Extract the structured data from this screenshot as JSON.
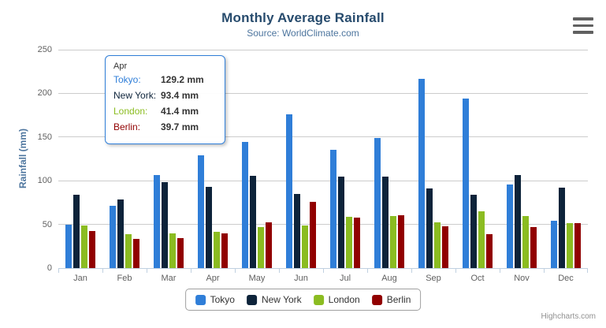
{
  "header": {
    "title": "Monthly Average Rainfall",
    "subtitle": "Source: WorldClimate.com"
  },
  "chart_data": {
    "type": "bar",
    "title": "Monthly Average Rainfall",
    "subtitle": "Source: WorldClimate.com",
    "categories": [
      "Jan",
      "Feb",
      "Mar",
      "Apr",
      "May",
      "Jun",
      "Jul",
      "Aug",
      "Sep",
      "Oct",
      "Nov",
      "Dec"
    ],
    "series": [
      {
        "name": "Tokyo",
        "color": "#2f7ed8",
        "values": [
          49.9,
          71.5,
          106.4,
          129.2,
          144.0,
          176.0,
          135.6,
          148.5,
          216.4,
          194.1,
          95.6,
          54.4
        ]
      },
      {
        "name": "New York",
        "color": "#0d233a",
        "values": [
          83.6,
          78.8,
          98.5,
          93.4,
          106.0,
          84.5,
          105.0,
          104.3,
          91.2,
          83.5,
          106.6,
          92.3
        ]
      },
      {
        "name": "London",
        "color": "#8bbc21",
        "values": [
          48.9,
          38.8,
          39.3,
          41.4,
          47.0,
          48.3,
          59.0,
          59.6,
          52.4,
          65.2,
          59.3,
          51.2
        ]
      },
      {
        "name": "Berlin",
        "color": "#910000",
        "values": [
          42.4,
          33.2,
          34.5,
          39.7,
          52.6,
          75.5,
          57.4,
          60.4,
          47.6,
          39.1,
          46.8,
          51.1
        ]
      }
    ],
    "xlabel": "",
    "ylabel": "Rainfall (mm)",
    "ylim": [
      0,
      250
    ],
    "ytick_step": 50,
    "grid": true,
    "legend_position": "bottom"
  },
  "tooltip": {
    "header": "Apr",
    "rows": [
      {
        "label": "Tokyo:",
        "value": "129.2 mm",
        "color": "#2f7ed8"
      },
      {
        "label": "New York:",
        "value": "93.4 mm",
        "color": "#0d233a"
      },
      {
        "label": "London:",
        "value": "41.4 mm",
        "color": "#8bbc21"
      },
      {
        "label": "Berlin:",
        "value": "39.7 mm",
        "color": "#910000"
      }
    ]
  },
  "credits": {
    "label": "Highcharts.com"
  },
  "colors": {
    "title": "#274b6d",
    "subtitle": "#4d759e",
    "axis_title": "#4d759e",
    "tick_label": "#606060",
    "gridline": "#cccccc",
    "axis_line": "#c0d0e0",
    "tooltip_border": "#2f7ed8",
    "legend_border": "#a0a0a0",
    "credits": "#909090"
  }
}
